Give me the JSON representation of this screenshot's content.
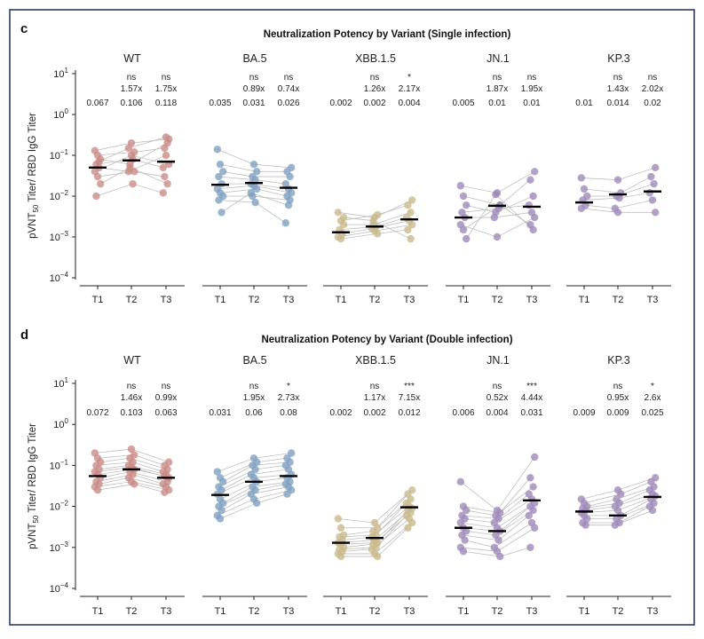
{
  "chart_data": [
    {
      "panel": "c",
      "type": "scatter",
      "title": "Neutralization Potency by Variant (Single infection)",
      "ylabel": "pVNT50 Titer/ RBD IgG Titer",
      "yscale": "log",
      "ylim": [
        0.0001,
        10
      ],
      "timepoints": [
        "T1",
        "T2",
        "T3"
      ],
      "variants": [
        {
          "name": "WT",
          "color": "#c98b87",
          "medians": [
            0.05,
            0.075,
            0.07
          ],
          "sig": [
            "",
            "ns",
            "ns"
          ],
          "fold": [
            "",
            "1.57x",
            "1.75x"
          ],
          "geo": [
            "0.067",
            "0.106",
            "0.118"
          ],
          "subjects": [
            [
              0.13,
              0.2,
              0.25
            ],
            [
              0.1,
              0.12,
              0.15
            ],
            [
              0.08,
              0.06,
              0.2
            ],
            [
              0.06,
              0.08,
              0.05
            ],
            [
              0.05,
              0.04,
              0.1
            ],
            [
              0.04,
              0.1,
              0.06
            ],
            [
              0.03,
              0.04,
              0.03
            ],
            [
              0.02,
              0.05,
              0.02
            ],
            [
              0.01,
              0.02,
              0.012
            ],
            [
              0.07,
              0.15,
              0.28
            ]
          ]
        },
        {
          "name": "BA.5",
          "color": "#7f9fc0",
          "medians": [
            0.019,
            0.021,
            0.016
          ],
          "sig": [
            "",
            "ns",
            "ns"
          ],
          "fold": [
            "",
            "0.89x",
            "0.74x"
          ],
          "geo": [
            "0.035",
            "0.031",
            "0.026"
          ],
          "subjects": [
            [
              0.14,
              0.06,
              0.05
            ],
            [
              0.06,
              0.04,
              0.04
            ],
            [
              0.04,
              0.03,
              0.03
            ],
            [
              0.03,
              0.025,
              0.02
            ],
            [
              0.02,
              0.02,
              0.015
            ],
            [
              0.015,
              0.018,
              0.012
            ],
            [
              0.012,
              0.015,
              0.01
            ],
            [
              0.01,
              0.01,
              0.008
            ],
            [
              0.008,
              0.007,
              0.0022
            ],
            [
              0.004,
              0.012,
              0.006
            ]
          ]
        },
        {
          "name": "XBB.1.5",
          "color": "#c9b98a",
          "medians": [
            0.0013,
            0.0018,
            0.0027
          ],
          "sig": [
            "",
            "ns",
            "*"
          ],
          "fold": [
            "",
            "1.26x",
            "2.17x"
          ],
          "geo": [
            "0.002",
            "0.002",
            "0.004"
          ],
          "subjects": [
            [
              0.004,
              0.003,
              0.008
            ],
            [
              0.0025,
              0.0035,
              0.006
            ],
            [
              0.002,
              0.002,
              0.004
            ],
            [
              0.0015,
              0.0018,
              0.003
            ],
            [
              0.0012,
              0.0016,
              0.0025
            ],
            [
              0.001,
              0.0014,
              0.002
            ],
            [
              0.0009,
              0.0012,
              0.0015
            ],
            [
              0.003,
              0.0025,
              0.0009
            ]
          ]
        },
        {
          "name": "JN.1",
          "color": "#9e88b8",
          "medians": [
            0.003,
            0.0058,
            0.0055
          ],
          "sig": [
            "",
            "ns",
            "ns"
          ],
          "fold": [
            "",
            "1.87x",
            "1.95x"
          ],
          "geo": [
            "0.005",
            "0.01",
            "0.01"
          ],
          "subjects": [
            [
              0.018,
              0.012,
              0.04
            ],
            [
              0.01,
              0.006,
              0.025
            ],
            [
              0.006,
              0.004,
              0.01
            ],
            [
              0.004,
              0.005,
              0.006
            ],
            [
              0.003,
              0.003,
              0.004
            ],
            [
              0.002,
              0.001,
              0.003
            ],
            [
              0.0015,
              0.006,
              0.002
            ],
            [
              0.0009,
              0.011,
              0.0015
            ]
          ]
        },
        {
          "name": "KP.3",
          "color": "#9e88b8",
          "medians": [
            0.007,
            0.011,
            0.013
          ],
          "sig": [
            "",
            "ns",
            "ns"
          ],
          "fold": [
            "",
            "1.43x",
            "2.02x"
          ],
          "geo": [
            "0.01",
            "0.014",
            "0.02"
          ],
          "subjects": [
            [
              0.028,
              0.025,
              0.05
            ],
            [
              0.015,
              0.012,
              0.03
            ],
            [
              0.01,
              0.01,
              0.02
            ],
            [
              0.008,
              0.009,
              0.012
            ],
            [
              0.006,
              0.005,
              0.008
            ],
            [
              0.005,
              0.004,
              0.004
            ]
          ]
        }
      ]
    },
    {
      "panel": "d",
      "type": "scatter",
      "title": "Neutralization Potency by Variant (Double infection)",
      "ylabel": "pVNT50 Titer/ RBD IgG Titer",
      "yscale": "log",
      "ylim": [
        0.0001,
        10
      ],
      "timepoints": [
        "T1",
        "T2",
        "T3"
      ],
      "variants": [
        {
          "name": "WT",
          "color": "#c98b87",
          "medians": [
            0.055,
            0.08,
            0.05
          ],
          "sig": [
            "",
            "ns",
            "ns"
          ],
          "fold": [
            "",
            "1.46x",
            "0.99x"
          ],
          "geo": [
            "0.072",
            "0.103",
            "0.063"
          ],
          "subjects": [
            [
              0.2,
              0.25,
              0.12
            ],
            [
              0.15,
              0.18,
              0.1
            ],
            [
              0.12,
              0.15,
              0.08
            ],
            [
              0.1,
              0.12,
              0.07
            ],
            [
              0.08,
              0.1,
              0.06
            ],
            [
              0.07,
              0.09,
              0.05
            ],
            [
              0.06,
              0.08,
              0.055
            ],
            [
              0.05,
              0.07,
              0.04
            ],
            [
              0.04,
              0.06,
              0.035
            ],
            [
              0.035,
              0.05,
              0.03
            ],
            [
              0.03,
              0.04,
              0.025
            ],
            [
              0.025,
              0.035,
              0.022
            ]
          ]
        },
        {
          "name": "BA.5",
          "color": "#7f9fc0",
          "medians": [
            0.019,
            0.04,
            0.055
          ],
          "sig": [
            "",
            "ns",
            "*"
          ],
          "fold": [
            "",
            "1.95x",
            "2.73x"
          ],
          "geo": [
            "0.031",
            "0.06",
            "0.08"
          ],
          "subjects": [
            [
              0.07,
              0.15,
              0.2
            ],
            [
              0.05,
              0.12,
              0.15
            ],
            [
              0.04,
              0.1,
              0.12
            ],
            [
              0.03,
              0.08,
              0.1
            ],
            [
              0.025,
              0.06,
              0.08
            ],
            [
              0.02,
              0.05,
              0.06
            ],
            [
              0.015,
              0.04,
              0.05
            ],
            [
              0.012,
              0.03,
              0.04
            ],
            [
              0.01,
              0.025,
              0.035
            ],
            [
              0.008,
              0.02,
              0.03
            ],
            [
              0.006,
              0.015,
              0.025
            ],
            [
              0.005,
              0.012,
              0.02
            ]
          ]
        },
        {
          "name": "XBB.1.5",
          "color": "#c9b98a",
          "medians": [
            0.0013,
            0.0017,
            0.0095
          ],
          "sig": [
            "",
            "ns",
            "***"
          ],
          "fold": [
            "",
            "1.17x",
            "7.15x"
          ],
          "geo": [
            "0.002",
            "0.002",
            "0.012"
          ],
          "subjects": [
            [
              0.005,
              0.004,
              0.025
            ],
            [
              0.003,
              0.003,
              0.02
            ],
            [
              0.002,
              0.0025,
              0.015
            ],
            [
              0.0018,
              0.002,
              0.012
            ],
            [
              0.0015,
              0.0018,
              0.01
            ],
            [
              0.0013,
              0.0015,
              0.009
            ],
            [
              0.0012,
              0.0013,
              0.008
            ],
            [
              0.001,
              0.0012,
              0.007
            ],
            [
              0.0009,
              0.001,
              0.006
            ],
            [
              0.0008,
              0.0009,
              0.005
            ],
            [
              0.0007,
              0.0007,
              0.004
            ],
            [
              0.0006,
              0.0006,
              0.003
            ]
          ]
        },
        {
          "name": "JN.1",
          "color": "#9e88b8",
          "medians": [
            0.003,
            0.0025,
            0.014
          ],
          "sig": [
            "",
            "ns",
            "***"
          ],
          "fold": [
            "",
            "0.52x",
            "4.44x"
          ],
          "geo": [
            "0.006",
            "0.004",
            "0.031"
          ],
          "subjects": [
            [
              0.04,
              0.008,
              0.16
            ],
            [
              0.01,
              0.007,
              0.05
            ],
            [
              0.008,
              0.006,
              0.03
            ],
            [
              0.006,
              0.005,
              0.02
            ],
            [
              0.005,
              0.004,
              0.015
            ],
            [
              0.004,
              0.003,
              0.012
            ],
            [
              0.003,
              0.0025,
              0.01
            ],
            [
              0.0025,
              0.002,
              0.008
            ],
            [
              0.002,
              0.0015,
              0.006
            ],
            [
              0.0015,
              0.001,
              0.004
            ],
            [
              0.001,
              0.0008,
              0.003
            ],
            [
              0.0008,
              0.0006,
              0.001
            ]
          ]
        },
        {
          "name": "KP.3",
          "color": "#9e88b8",
          "medians": [
            0.0075,
            0.006,
            0.017
          ],
          "sig": [
            "",
            "ns",
            "*"
          ],
          "fold": [
            "",
            "0.95x",
            "2.6x"
          ],
          "geo": [
            "0.009",
            "0.009",
            "0.025"
          ],
          "subjects": [
            [
              0.015,
              0.025,
              0.05
            ],
            [
              0.012,
              0.02,
              0.04
            ],
            [
              0.01,
              0.015,
              0.03
            ],
            [
              0.009,
              0.012,
              0.025
            ],
            [
              0.008,
              0.01,
              0.02
            ],
            [
              0.007,
              0.008,
              0.018
            ],
            [
              0.006,
              0.006,
              0.015
            ],
            [
              0.005,
              0.005,
              0.012
            ],
            [
              0.004,
              0.004,
              0.01
            ],
            [
              0.0035,
              0.0035,
              0.008
            ]
          ]
        }
      ]
    }
  ],
  "panel_letters": [
    "c",
    "d"
  ]
}
